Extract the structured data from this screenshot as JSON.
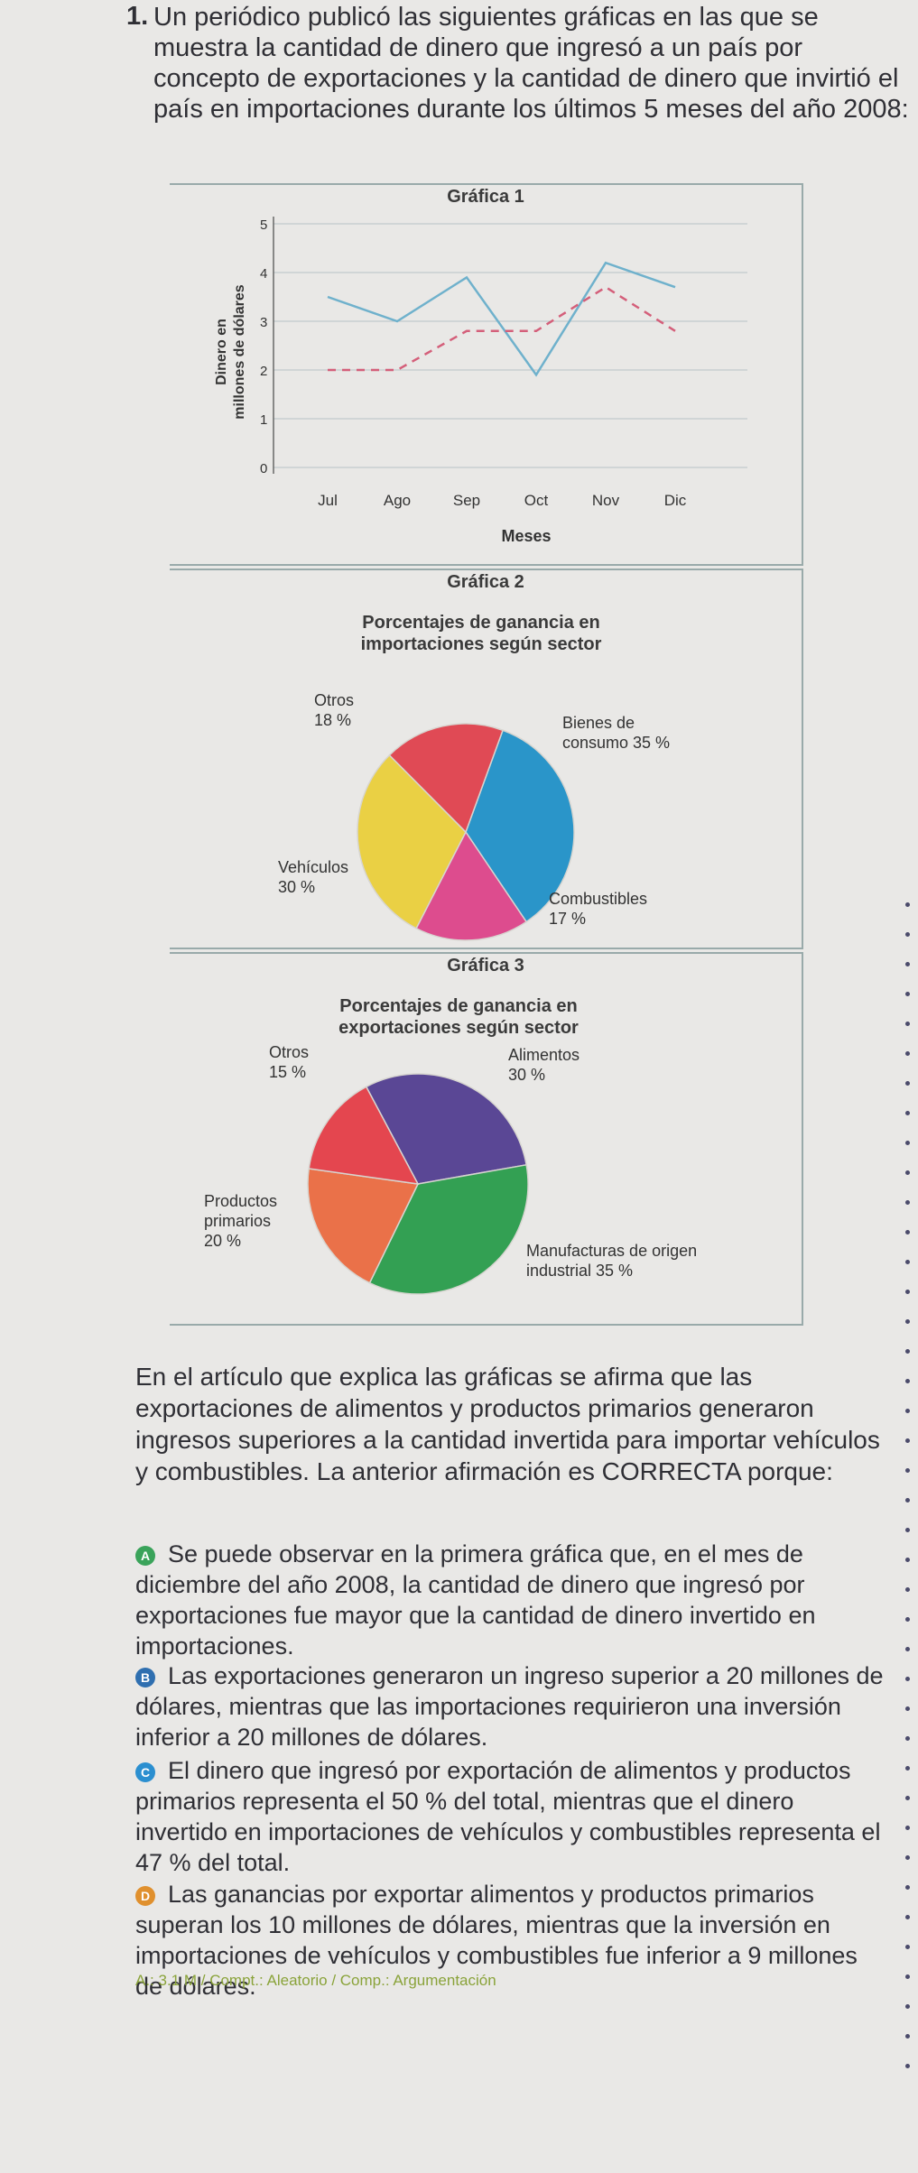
{
  "question": {
    "number": "1.",
    "intro": "Un periódico publicó las siguientes gráficas en las que se muestra la cantidad de dinero que ingresó a un país por concepto de exportaciones y la cantidad de dinero que invirtió el país en importaciones durante los últimos 5 meses del año 2008:"
  },
  "chart_data": [
    {
      "type": "line",
      "title": "Gráfica 1",
      "xlabel": "Meses",
      "ylabel": "Dinero en millones de dólares",
      "categories": [
        "Jul",
        "Ago",
        "Sep",
        "Oct",
        "Nov",
        "Dic"
      ],
      "yticks": [
        "0",
        "1",
        "2",
        "3",
        "4",
        "5"
      ],
      "ylim": [
        0,
        5
      ],
      "grid": true,
      "series": [
        {
          "values": [
            3.5,
            3.0,
            3.9,
            1.9,
            4.2,
            3.7
          ],
          "color": "#6fb1cc",
          "style": "solid"
        },
        {
          "values": [
            2.0,
            2.0,
            2.8,
            2.8,
            3.7,
            2.8
          ],
          "color": "#d45f7a",
          "style": "dashed"
        }
      ]
    },
    {
      "type": "pie",
      "title": "Gráfica 2",
      "subtitle": "Porcentajes de ganancia en importaciones según sector",
      "slices": [
        {
          "label": "Bienes de consumo 35 %",
          "value": 35,
          "color": "#2a95c9"
        },
        {
          "label": "Combustibles 17 %",
          "value": 17,
          "color": "#dd4c8e"
        },
        {
          "label": "Vehículos 30 %",
          "value": 30,
          "color": "#ead044"
        },
        {
          "label": "Otros 18 %",
          "value": 18,
          "color": "#e04a55"
        }
      ]
    },
    {
      "type": "pie",
      "title": "Gráfica 3",
      "subtitle": "Porcentajes de ganancia en exportaciones según sector",
      "slices": [
        {
          "label": "Alimentos 30 %",
          "value": 30,
          "color": "#5a4795"
        },
        {
          "label": "Manufacturas de origen industrial 35 %",
          "value": 35,
          "color": "#33a053"
        },
        {
          "label": "Productos primarios 20 %",
          "value": 20,
          "color": "#ea7149"
        },
        {
          "label": "Otros 15 %",
          "value": 15,
          "color": "#e4464f"
        }
      ]
    }
  ],
  "statement": "En el artículo que explica las gráficas se afirma que las exportaciones de alimentos y productos primarios generaron ingresos superiores a la cantidad invertida para importar vehículos y combustibles. La anterior afirmación es CORRECTA porque:",
  "options": [
    {
      "letter": "A",
      "color": "#3aa35a",
      "text": "Se puede observar en la primera gráfica que, en el mes de diciembre del año 2008, la cantidad de dinero que ingresó por exportaciones fue mayor que la cantidad de dinero invertido en importaciones."
    },
    {
      "letter": "B",
      "color": "#2f6fb0",
      "text": "Las exportaciones generaron un ingreso superior a 20 millones de dólares, mientras que las importaciones requirieron una inversión inferior a 20 millones de dólares."
    },
    {
      "letter": "C",
      "color": "#2b8fd0",
      "text": "El dinero que ingresó por exportación de alimentos y productos primarios representa el 50 % del total, mientras que el dinero invertido en importaciones de vehículos y combustibles representa el 47 % del total."
    },
    {
      "letter": "D",
      "color": "#e0902e",
      "text": "Las ganancias por exportar alimentos y productos primarios superan los 10 millones de dólares, mientras que la inversión en importaciones de vehículos y combustibles fue inferior a 9 millones de dólares."
    }
  ],
  "footer": "A.: 3.1 M / Compt.: Aleatorio / Comp.: Argumentación"
}
